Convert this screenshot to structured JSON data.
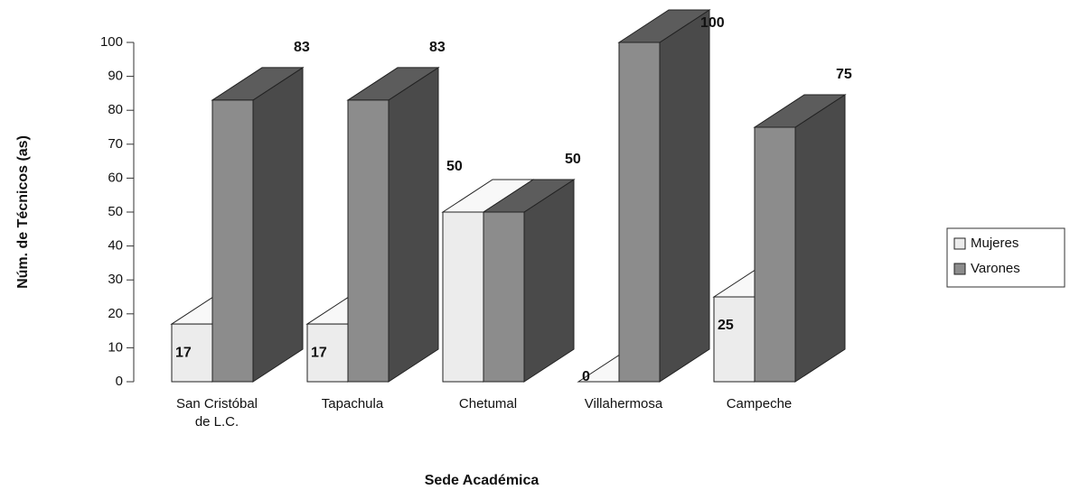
{
  "chart_data": {
    "type": "bar3d",
    "y_label": "Núm. de Técnicos (as)",
    "x_label": "Sede Académica",
    "categories": [
      "San Cristóbal de L.C.",
      "Tapachula",
      "Chetumal",
      "Villahermosa",
      "Campeche"
    ],
    "series": [
      {
        "name": "Mujeres",
        "color": "#ececec",
        "values": [
          17,
          17,
          50,
          0,
          25
        ]
      },
      {
        "name": "Varones",
        "color": "#8c8c8c",
        "values": [
          83,
          83,
          50,
          100,
          75
        ]
      }
    ],
    "ylim": [
      0,
      100
    ],
    "yticks": [
      0,
      10,
      20,
      30,
      40,
      50,
      60,
      70,
      80,
      90,
      100
    ],
    "legend": "right"
  }
}
